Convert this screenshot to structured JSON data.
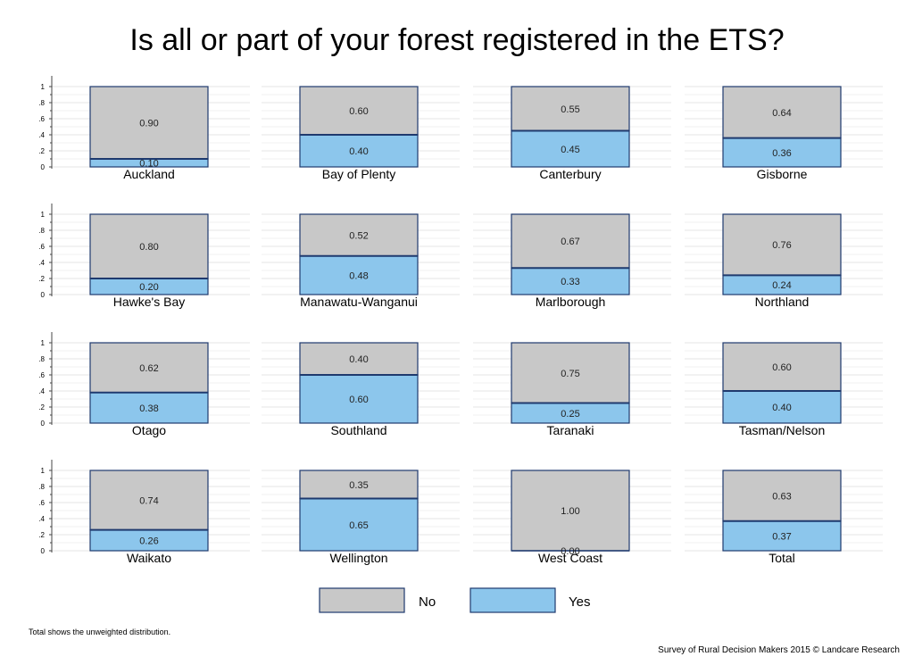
{
  "chart_data": {
    "type": "bar",
    "stacked": true,
    "title": "Is all or part of your forest registered in the ETS?",
    "ylim": [
      0,
      1
    ],
    "y_ticks": [
      "0",
      ".2",
      ".4",
      ".6",
      ".8",
      "1"
    ],
    "grid": true,
    "legend_position": "bottom",
    "series": [
      {
        "name": "No",
        "color": "#c8c8c8"
      },
      {
        "name": "Yes",
        "color": "#8cc6ec"
      }
    ],
    "panels": [
      {
        "label": "Auckland",
        "yes": "0.10",
        "no": "0.90"
      },
      {
        "label": "Bay of Plenty",
        "yes": "0.40",
        "no": "0.60"
      },
      {
        "label": "Canterbury",
        "yes": "0.45",
        "no": "0.55"
      },
      {
        "label": "Gisborne",
        "yes": "0.36",
        "no": "0.64"
      },
      {
        "label": "Hawke's Bay",
        "yes": "0.20",
        "no": "0.80"
      },
      {
        "label": "Manawatu-Wanganui",
        "yes": "0.48",
        "no": "0.52"
      },
      {
        "label": "Marlborough",
        "yes": "0.33",
        "no": "0.67"
      },
      {
        "label": "Northland",
        "yes": "0.24",
        "no": "0.76"
      },
      {
        "label": "Otago",
        "yes": "0.38",
        "no": "0.62"
      },
      {
        "label": "Southland",
        "yes": "0.60",
        "no": "0.40"
      },
      {
        "label": "Taranaki",
        "yes": "0.25",
        "no": "0.75"
      },
      {
        "label": "Tasman/Nelson",
        "yes": "0.40",
        "no": "0.60"
      },
      {
        "label": "Waikato",
        "yes": "0.26",
        "no": "0.74"
      },
      {
        "label": "Wellington",
        "yes": "0.65",
        "no": "0.35"
      },
      {
        "label": "West Coast",
        "yes": "0.00",
        "no": "1.00"
      },
      {
        "label": "Total",
        "yes": "0.37",
        "no": "0.63"
      }
    ],
    "footnote": "Total shows the unweighted distribution.",
    "credit": "Survey of Rural Decision Makers 2015 © Landcare Research"
  }
}
